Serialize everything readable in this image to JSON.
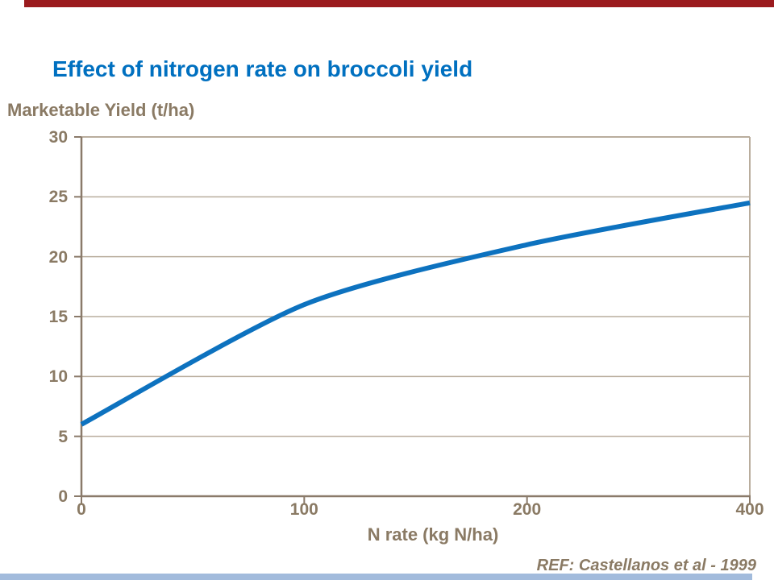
{
  "slide": {
    "title": "Effect of nitrogen rate on broccoli yield",
    "ref_note": "REF: Castellanos et al - 1999"
  },
  "colors": {
    "title_blue": "#0070c0",
    "text_brown": "#8a7a64",
    "axis_brown": "#8a7a6a",
    "grid_taupe": "#b9ad9d",
    "line_blue": "#0d72bf",
    "top_bar_red": "#9b1b1e",
    "bottom_bar_blue": "#a2bbdc"
  },
  "chart_data": {
    "type": "line",
    "title": "Effect of nitrogen rate on broccoli yield",
    "categories": [
      "0",
      "100",
      "200",
      "400"
    ],
    "series": [
      {
        "name": "Marketable yield",
        "values": [
          6,
          16,
          21,
          24.5
        ]
      }
    ],
    "xlabel": "N rate (kg N/ha)",
    "ylabel": "Marketable Yield (t/ha)",
    "ylim": [
      0,
      30
    ],
    "yticks": [
      0,
      5,
      10,
      15,
      20,
      25,
      30
    ],
    "grid": true,
    "legend": false,
    "category_axis_equal_spacing": true,
    "smoothed_line": true
  }
}
